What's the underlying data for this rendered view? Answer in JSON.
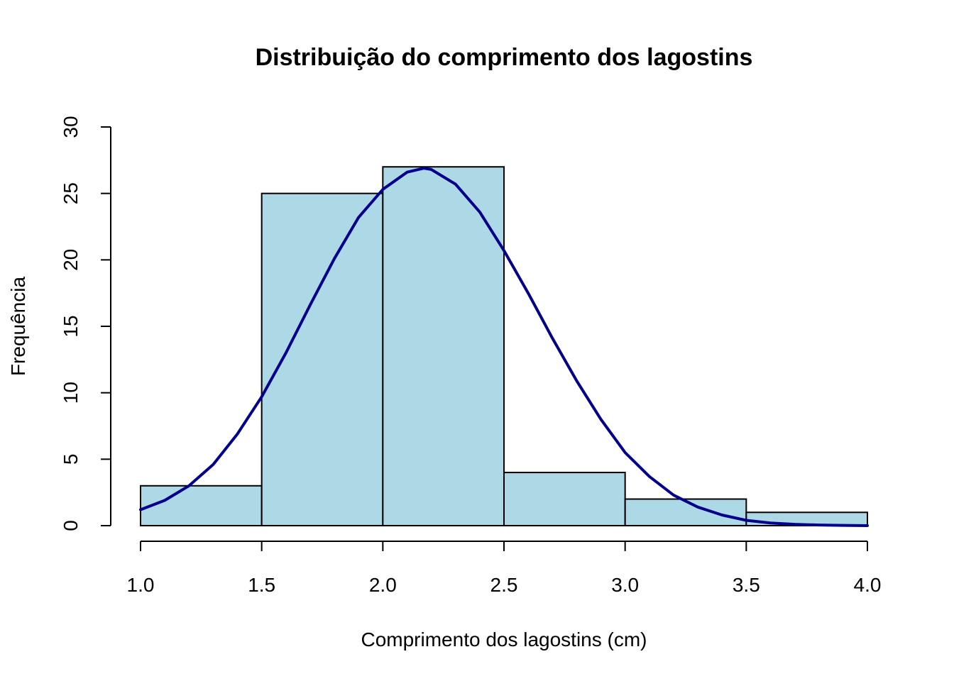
{
  "chart_data": {
    "type": "bar",
    "subtype": "histogram",
    "title": "Distribuição do comprimento dos lagostins",
    "xlabel": "Comprimento dos lagostins (cm)",
    "ylabel": "Frequência",
    "bins": [
      {
        "start": 1.0,
        "end": 1.5,
        "value": 3
      },
      {
        "start": 1.5,
        "end": 2.0,
        "value": 25
      },
      {
        "start": 2.0,
        "end": 2.5,
        "value": 27
      },
      {
        "start": 2.5,
        "end": 3.0,
        "value": 4
      },
      {
        "start": 3.0,
        "end": 3.5,
        "value": 2
      },
      {
        "start": 3.5,
        "end": 4.0,
        "value": 1
      }
    ],
    "xlim": [
      1.0,
      4.0
    ],
    "ylim": [
      0,
      30
    ],
    "x_ticks": [
      "1.0",
      "1.5",
      "2.0",
      "2.5",
      "3.0",
      "3.5",
      "4.0"
    ],
    "y_ticks": [
      "0",
      "5",
      "10",
      "15",
      "20",
      "25",
      "30"
    ],
    "curve": {
      "type": "normal-density",
      "x": [
        1.0,
        1.1,
        1.2,
        1.3,
        1.4,
        1.5,
        1.6,
        1.7,
        1.8,
        1.9,
        2.0,
        2.1,
        2.17,
        2.2,
        2.3,
        2.4,
        2.5,
        2.6,
        2.7,
        2.8,
        2.9,
        3.0,
        3.1,
        3.2,
        3.3,
        3.4,
        3.5,
        3.6,
        3.7,
        3.8,
        3.9,
        4.0
      ],
      "y": [
        1.2,
        1.9,
        3.0,
        4.6,
        6.9,
        9.7,
        13.0,
        16.6,
        20.1,
        23.2,
        25.3,
        26.6,
        26.9,
        26.8,
        25.7,
        23.6,
        20.7,
        17.5,
        14.1,
        10.9,
        8.0,
        5.5,
        3.7,
        2.3,
        1.4,
        0.8,
        0.4,
        0.2,
        0.1,
        0.05,
        0.02,
        0.0
      ]
    },
    "grid": false,
    "legend": "none",
    "colors": {
      "bar_fill": "#ADD8E6",
      "bar_stroke": "#000000",
      "curve": "#00008B",
      "background": "#FFFFFF"
    }
  }
}
